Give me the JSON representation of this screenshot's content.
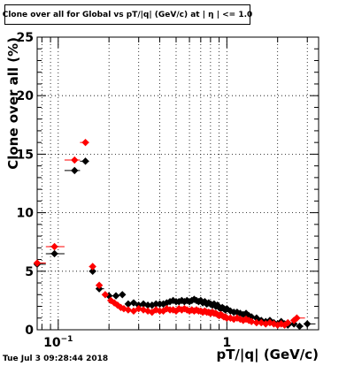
{
  "title": "Clone  over all for Global vs pT/|q| (GeV/c) at | η | <= 1.0",
  "timestamp": "Tue Jul  3 09:28:44 2018",
  "chart_data": {
    "type": "scatter",
    "title": "Clone  over all for Global vs pT/|q| (GeV/c) at | η | <= 1.0",
    "xlabel": "pT/|q| (GeV/c)",
    "ylabel": "Clone  over all (%)",
    "x_scale": "log",
    "xlim": [
      0.075,
      3.5
    ],
    "ylim": [
      0,
      25
    ],
    "grid": true,
    "x_tick_labels": [
      {
        "value": 0.1,
        "base": "10",
        "exp": "−1"
      },
      {
        "value": 1,
        "base": "1",
        "exp": ""
      }
    ],
    "y_ticks": [
      0,
      5,
      10,
      15,
      20,
      25
    ],
    "series": [
      {
        "color": "#000000",
        "x": [
          0.075,
          0.095,
          0.125,
          0.145,
          0.16,
          0.175,
          0.2,
          0.22,
          0.24,
          0.26,
          0.28,
          0.3,
          0.32,
          0.34,
          0.36,
          0.38,
          0.4,
          0.42,
          0.44,
          0.46,
          0.48,
          0.5,
          0.52,
          0.54,
          0.56,
          0.58,
          0.6,
          0.62,
          0.64,
          0.66,
          0.68,
          0.7,
          0.72,
          0.74,
          0.76,
          0.78,
          0.8,
          0.82,
          0.84,
          0.86,
          0.88,
          0.9,
          0.92,
          0.94,
          0.96,
          0.98,
          1.0,
          1.05,
          1.1,
          1.15,
          1.2,
          1.25,
          1.3,
          1.35,
          1.4,
          1.5,
          1.6,
          1.7,
          1.8,
          1.9,
          2.0,
          2.1,
          2.2,
          2.3,
          2.5,
          2.7,
          3.0
        ],
        "y": [
          5.6,
          6.5,
          13.6,
          14.4,
          5.0,
          3.5,
          2.9,
          2.9,
          3.0,
          2.2,
          2.3,
          2.1,
          2.2,
          2.1,
          2.1,
          2.2,
          2.2,
          2.2,
          2.3,
          2.4,
          2.5,
          2.4,
          2.4,
          2.5,
          2.4,
          2.5,
          2.4,
          2.5,
          2.6,
          2.5,
          2.4,
          2.5,
          2.3,
          2.4,
          2.2,
          2.3,
          2.2,
          2.1,
          2.2,
          2.0,
          2.1,
          1.9,
          1.8,
          1.9,
          1.8,
          1.7,
          1.8,
          1.6,
          1.5,
          1.5,
          1.4,
          1.3,
          1.4,
          1.2,
          1.1,
          1.0,
          0.8,
          0.7,
          0.8,
          0.6,
          0.5,
          0.7,
          0.5,
          0.4,
          0.5,
          0.3,
          0.5
        ]
      },
      {
        "color": "#ff0000",
        "x": [
          0.075,
          0.095,
          0.125,
          0.145,
          0.16,
          0.175,
          0.19,
          0.205,
          0.215,
          0.225,
          0.235,
          0.245,
          0.26,
          0.28,
          0.3,
          0.32,
          0.34,
          0.36,
          0.38,
          0.4,
          0.42,
          0.44,
          0.46,
          0.48,
          0.5,
          0.52,
          0.54,
          0.56,
          0.58,
          0.6,
          0.62,
          0.64,
          0.66,
          0.68,
          0.7,
          0.72,
          0.74,
          0.76,
          0.78,
          0.8,
          0.82,
          0.84,
          0.86,
          0.88,
          0.9,
          0.92,
          0.94,
          0.96,
          0.98,
          1.0,
          1.05,
          1.1,
          1.15,
          1.2,
          1.25,
          1.3,
          1.35,
          1.4,
          1.5,
          1.6,
          1.7,
          1.8,
          1.9,
          2.0,
          2.1,
          2.2,
          2.3,
          2.5,
          2.6
        ],
        "y": [
          5.7,
          7.1,
          14.5,
          16.0,
          5.4,
          3.8,
          3.0,
          2.5,
          2.3,
          2.1,
          1.9,
          1.8,
          1.7,
          1.6,
          1.8,
          1.7,
          1.6,
          1.5,
          1.7,
          1.6,
          1.6,
          1.8,
          1.7,
          1.7,
          1.6,
          1.8,
          1.7,
          1.8,
          1.7,
          1.6,
          1.7,
          1.6,
          1.7,
          1.6,
          1.6,
          1.5,
          1.6,
          1.5,
          1.5,
          1.4,
          1.5,
          1.4,
          1.4,
          1.3,
          1.2,
          1.3,
          1.2,
          1.1,
          1.1,
          1.0,
          1.0,
          0.9,
          1.0,
          0.9,
          0.8,
          0.9,
          0.8,
          0.7,
          0.6,
          0.6,
          0.5,
          0.6,
          0.5,
          0.4,
          0.5,
          0.4,
          0.6,
          0.8,
          1.0
        ]
      }
    ]
  }
}
